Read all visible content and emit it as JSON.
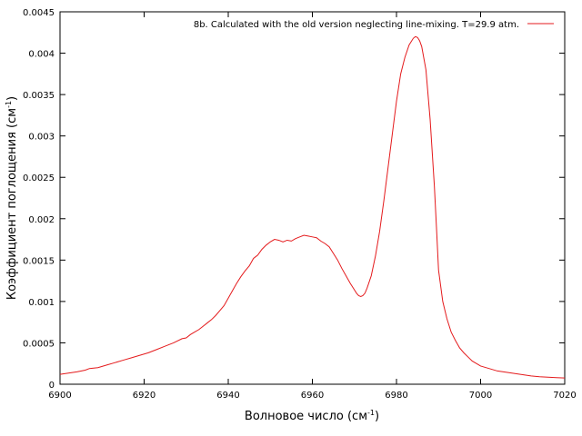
{
  "chart_data": {
    "type": "line",
    "xlabel_main": "Волновое число (см",
    "xlabel_sup": "-1",
    "xlabel_tail": ")",
    "ylabel_main": "Коэффициент поглощения (см",
    "ylabel_sup": "-1",
    "ylabel_tail": ")",
    "xlim": [
      6900,
      7020
    ],
    "ylim": [
      0,
      0.0045
    ],
    "xticks": [
      6900,
      6920,
      6940,
      6960,
      6980,
      7000,
      7020
    ],
    "yticks": [
      0,
      0.0005,
      0.001,
      0.0015,
      0.002,
      0.0025,
      0.003,
      0.0035,
      0.004,
      0.0045
    ],
    "legend_position": "top-right",
    "grid": false,
    "series": [
      {
        "name": "8b. Calculated with the old version neglecting line-mixing. T=29.9 atm.",
        "color": "#e41a1c",
        "x": [
          6900,
          6902,
          6904,
          6906,
          6907,
          6909,
          6911,
          6913,
          6915,
          6917,
          6919,
          6921,
          6923,
          6925,
          6927,
          6929,
          6930,
          6931,
          6932,
          6933,
          6934,
          6935,
          6936,
          6937,
          6938,
          6939,
          6940,
          6941,
          6942,
          6943,
          6944,
          6945,
          6946,
          6946.5,
          6947,
          6948,
          6949,
          6950,
          6951,
          6952,
          6953,
          6954,
          6955,
          6956,
          6957,
          6958,
          6959,
          6960,
          6961,
          6962,
          6963,
          6964,
          6965,
          6966,
          6967,
          6968,
          6969,
          6970,
          6970.5,
          6971,
          6971.5,
          6972,
          6972.5,
          6973,
          6974,
          6975,
          6976,
          6977,
          6978,
          6979,
          6980,
          6981,
          6982,
          6983,
          6984,
          6984.5,
          6985,
          6985.5,
          6986,
          6987,
          6988,
          6989,
          6989.5,
          6990,
          6991,
          6992,
          6993,
          6994,
          6995,
          6996,
          6997,
          6998,
          7000,
          7002,
          7004,
          7006,
          7008,
          7010,
          7012,
          7014,
          7016,
          7018,
          7020
        ],
        "y": [
          0.00012,
          0.000135,
          0.00015,
          0.00017,
          0.00019,
          0.0002,
          0.00023,
          0.00026,
          0.00029,
          0.00032,
          0.00035,
          0.00038,
          0.00042,
          0.00046,
          0.0005,
          0.00055,
          0.00056,
          0.0006,
          0.00063,
          0.00066,
          0.0007,
          0.00074,
          0.00078,
          0.00083,
          0.00089,
          0.00095,
          0.00104,
          0.00113,
          0.00122,
          0.0013,
          0.00137,
          0.00143,
          0.00152,
          0.00154,
          0.00156,
          0.00163,
          0.00168,
          0.00172,
          0.00175,
          0.00174,
          0.00172,
          0.00174,
          0.00173,
          0.00176,
          0.00178,
          0.0018,
          0.00179,
          0.00178,
          0.00177,
          0.00173,
          0.0017,
          0.00166,
          0.00158,
          0.0015,
          0.0014,
          0.00131,
          0.00122,
          0.00114,
          0.0011,
          0.00107,
          0.00106,
          0.00107,
          0.0011,
          0.00116,
          0.00131,
          0.00155,
          0.00185,
          0.00222,
          0.00262,
          0.00302,
          0.00342,
          0.00375,
          0.00395,
          0.0041,
          0.00418,
          0.0042,
          0.00419,
          0.00415,
          0.00408,
          0.0038,
          0.0032,
          0.0024,
          0.0019,
          0.00138,
          0.001,
          0.00079,
          0.00063,
          0.00053,
          0.00044,
          0.00038,
          0.00033,
          0.00028,
          0.00022,
          0.00019,
          0.00016,
          0.000145,
          0.00013,
          0.000115,
          0.0001,
          9e-05,
          8.5e-05,
          8e-05,
          7.5e-05
        ]
      }
    ]
  }
}
